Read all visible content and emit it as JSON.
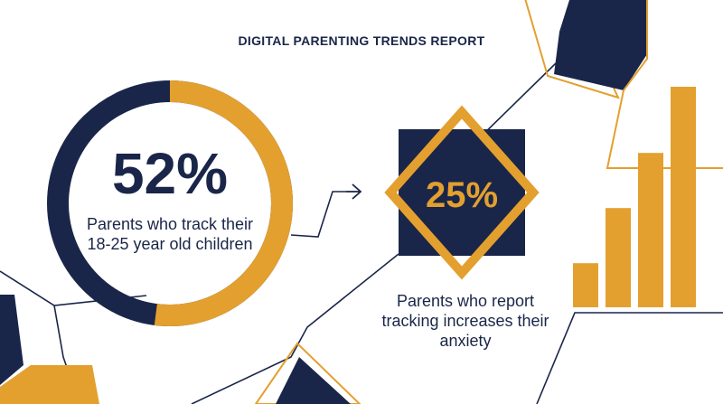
{
  "title": "DIGITAL PARENTING TRENDS REPORT",
  "stat_primary": {
    "value": "52%",
    "ring_fill": 0.52,
    "caption": "Parents who track their 18-25 year old children"
  },
  "stat_secondary": {
    "value": "25%",
    "caption": "Parents who report tracking increases their anxiety"
  },
  "bar_graphic": {
    "relative_heights": [
      0.2,
      0.45,
      0.7,
      1.0
    ]
  },
  "colors": {
    "navy": "#1a2649",
    "gold": "#e3a02f",
    "background": "#ffffff"
  }
}
